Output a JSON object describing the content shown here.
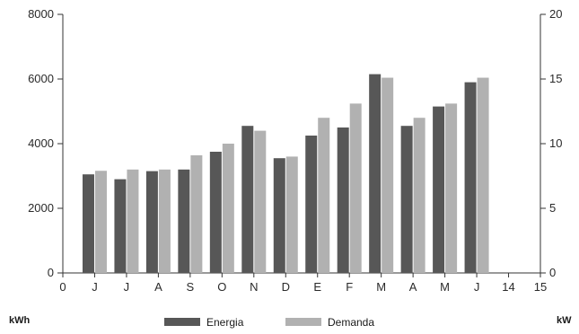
{
  "chart_data": {
    "type": "bar",
    "categories": [
      "J",
      "J",
      "A",
      "S",
      "O",
      "N",
      "D",
      "E",
      "F",
      "M",
      "A",
      "M",
      "J"
    ],
    "x_tick_labels": [
      "0",
      "J",
      "J",
      "A",
      "S",
      "O",
      "N",
      "D",
      "E",
      "F",
      "M",
      "A",
      "M",
      "J",
      "14",
      "15"
    ],
    "series": [
      {
        "name": "Energia",
        "axis": "left",
        "color": "#575757",
        "values": [
          3050,
          2900,
          3150,
          3200,
          3750,
          4550,
          3550,
          4250,
          4500,
          6150,
          4550,
          5150,
          5900
        ]
      },
      {
        "name": "Demanda",
        "axis": "right",
        "color": "#b1b1b1",
        "values": [
          7.9,
          8.0,
          8.0,
          9.1,
          10.0,
          11.0,
          9.0,
          12.0,
          13.1,
          15.1,
          12.0,
          13.1,
          15.1
        ]
      }
    ],
    "y_left": {
      "label": "kWh",
      "ylim": [
        0,
        8000
      ],
      "ticks": [
        "0",
        "2000",
        "4000",
        "6000",
        "8000"
      ]
    },
    "y_right": {
      "label": "kW",
      "ylim": [
        0,
        20
      ],
      "ticks": [
        "0",
        "5",
        "10",
        "15",
        "20"
      ]
    },
    "legend": {
      "placement": "bottom-center",
      "entries": [
        "Energia",
        "Demanda"
      ]
    },
    "grid": false
  }
}
